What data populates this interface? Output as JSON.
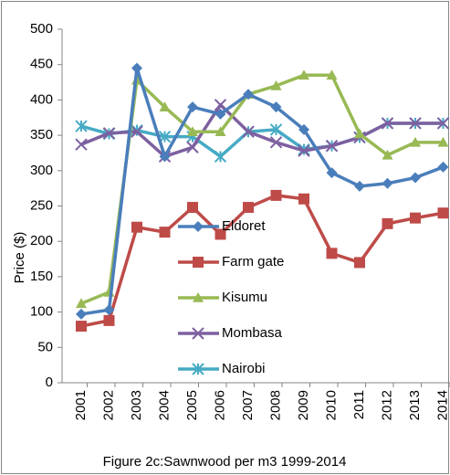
{
  "chart_data": {
    "type": "line",
    "title": "Figure 2c:Sawnwood per m3 1999-2014",
    "y_label": "Price ($)",
    "categories": [
      "2001",
      "2002",
      "2003",
      "2004",
      "2005",
      "2006",
      "2007",
      "2008",
      "2009",
      "2010",
      "2011",
      "2012",
      "2013",
      "2014"
    ],
    "series": [
      {
        "name": "Eldoret",
        "color": "#4a7ebb",
        "marker": "diamond",
        "values": [
          97,
          103,
          445,
          320,
          390,
          380,
          408,
          390,
          358,
          297,
          278,
          282,
          290,
          305
        ]
      },
      {
        "name": "Farm gate",
        "color": "#be4b48",
        "marker": "square",
        "values": [
          80,
          88,
          220,
          213,
          248,
          210,
          248,
          265,
          260,
          183,
          170,
          225,
          233,
          240
        ]
      },
      {
        "name": "Kisumu",
        "color": "#98b954",
        "marker": "triangle",
        "values": [
          112,
          128,
          428,
          390,
          355,
          355,
          408,
          420,
          435,
          435,
          352,
          322,
          340,
          340
        ]
      },
      {
        "name": "Mombasa",
        "color": "#7d60a0",
        "marker": "x",
        "values": [
          337,
          353,
          355,
          320,
          333,
          393,
          355,
          340,
          328,
          335,
          347,
          367,
          367,
          367
        ]
      },
      {
        "name": "Nairobi",
        "color": "#46aac5",
        "marker": "star",
        "values": [
          363,
          352,
          357,
          348,
          348,
          320,
          355,
          358,
          330,
          335,
          347,
          367,
          367,
          367
        ]
      }
    ],
    "ylim": [
      0,
      500
    ],
    "yticks": [
      0,
      50,
      100,
      150,
      200,
      250,
      300,
      350,
      400,
      450,
      500
    ]
  }
}
